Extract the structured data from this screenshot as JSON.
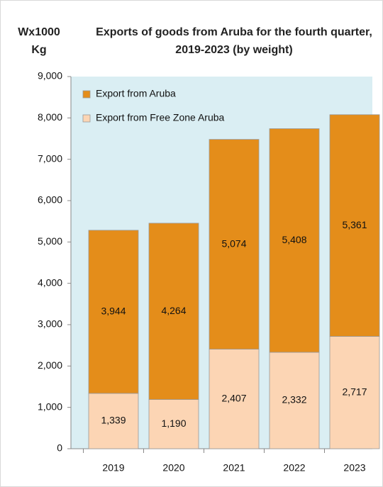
{
  "chart_data": {
    "type": "stacked-bar",
    "title": "Exports of goods from Aruba for the fourth quarter, 2019-2023 (by weight)",
    "ylabel": "Wx1000 Kg",
    "categories": [
      "2019",
      "2020",
      "2021",
      "2022",
      "2023"
    ],
    "series": [
      {
        "name": "Export from Free Zone Aruba",
        "color": "#fcd5b4",
        "values": [
          1339,
          1190,
          2407,
          2332,
          2717
        ],
        "value_labels": [
          "1,339",
          "1,190",
          "2,407",
          "2,332",
          "2,717"
        ]
      },
      {
        "name": "Export from Aruba",
        "color": "#e48d1a",
        "values": [
          3944,
          4264,
          5074,
          5408,
          5361
        ],
        "value_labels": [
          "3,944",
          "4,264",
          "5,074",
          "5,408",
          "5,361"
        ]
      }
    ],
    "ylim": [
      0,
      9000
    ],
    "yticks": [
      0,
      {
        "value": 1000,
        "label": "1,000"
      },
      {
        "value": 2000,
        "label": "2,000"
      },
      {
        "value": 3000,
        "label": "3,000"
      },
      {
        "value": 4000,
        "label": "4,000"
      },
      {
        "value": 5000,
        "label": "5,000"
      },
      {
        "value": 6000,
        "label": "6,000"
      },
      {
        "value": 7000,
        "label": "7,000"
      },
      {
        "value": 8000,
        "label": "8,000"
      },
      {
        "value": 9000,
        "label": "9,000"
      }
    ],
    "legend": "top-left"
  }
}
